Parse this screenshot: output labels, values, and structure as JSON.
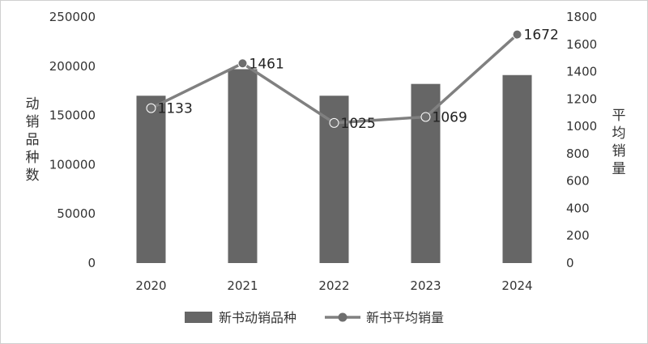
{
  "chart_data": {
    "type": "bar+line",
    "categories": [
      "2020",
      "2021",
      "2022",
      "2023",
      "2024"
    ],
    "series": [
      {
        "name": "新书动销品种",
        "type": "bar",
        "axis": "left",
        "values": [
          170000,
          197000,
          170000,
          182000,
          191000
        ],
        "color": "#666666"
      },
      {
        "name": "新书平均销量",
        "type": "line",
        "axis": "right",
        "values": [
          1133,
          1461,
          1025,
          1069,
          1672
        ],
        "data_labels": [
          "1133",
          "1461",
          "1025",
          "1069",
          "1672"
        ],
        "color": "#808080"
      }
    ],
    "y_left": {
      "label": "动销品种数",
      "ylim": [
        0,
        250000
      ],
      "ticks": [
        "0",
        "50000",
        "100000",
        "150000",
        "200000",
        "250000"
      ]
    },
    "y_right": {
      "label": "平均销量",
      "ylim": [
        0,
        1800
      ],
      "ticks": [
        "0",
        "200",
        "400",
        "600",
        "800",
        "1000",
        "1200",
        "1400",
        "1600",
        "1800"
      ]
    },
    "legend_position": "bottom",
    "grid": false
  }
}
